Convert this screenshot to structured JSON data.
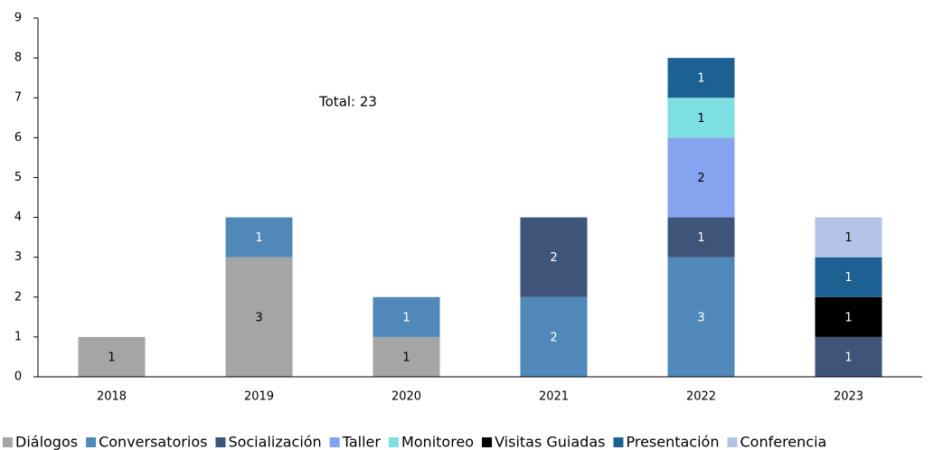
{
  "chart_data": {
    "type": "bar",
    "stacked": true,
    "categories": [
      "2018",
      "2019",
      "2020",
      "2021",
      "2022",
      "2023"
    ],
    "series": [
      {
        "name": "Diálogos",
        "color": "#a5a5a5",
        "values": [
          1,
          3,
          1,
          null,
          null,
          null
        ]
      },
      {
        "name": "Conversatorios",
        "color": "#5089b9",
        "values": [
          null,
          1,
          1,
          2,
          3,
          null
        ]
      },
      {
        "name": "Socialización",
        "color": "#3f5479",
        "values": [
          null,
          null,
          null,
          2,
          1,
          1
        ]
      },
      {
        "name": "Taller",
        "color": "#86a3ef",
        "values": [
          null,
          null,
          null,
          null,
          2,
          null
        ]
      },
      {
        "name": "Monitoreo",
        "color": "#7ddfe1",
        "values": [
          null,
          null,
          null,
          null,
          1,
          null
        ]
      },
      {
        "name": "Visitas Guiadas",
        "color": "#000000",
        "values": [
          null,
          null,
          null,
          null,
          null,
          1
        ]
      },
      {
        "name": "Presentación",
        "color": "#1d6192",
        "values": [
          null,
          null,
          null,
          null,
          1,
          1
        ]
      },
      {
        "name": "Conferencia",
        "color": "#b4c3e5",
        "values": [
          null,
          null,
          null,
          null,
          null,
          1
        ]
      }
    ],
    "annotations": [
      "Total: 23"
    ],
    "ylim": [
      0,
      9
    ],
    "yticks": [
      0,
      1,
      2,
      3,
      4,
      5,
      6,
      7,
      8,
      9
    ]
  }
}
